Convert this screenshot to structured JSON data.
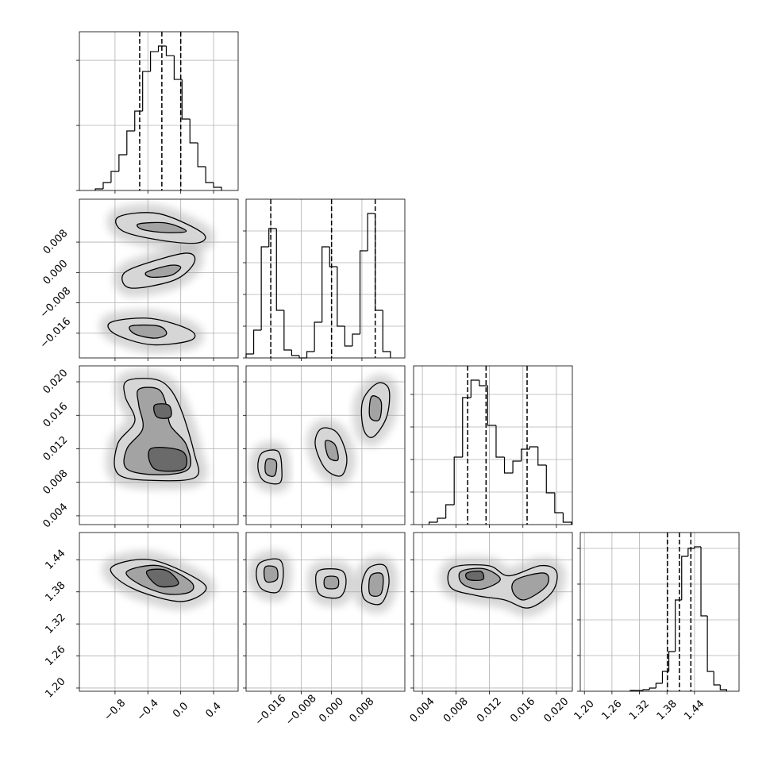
{
  "chart_data": {
    "type": "corner",
    "params": [
      {
        "xlim": [
          -1.234,
          0.699
        ],
        "ticks": [
          {
            "value": -0.8,
            "label": "−0.8"
          },
          {
            "value": -0.4,
            "label": "−0.4"
          },
          {
            "value": 0,
            "label": "0.0"
          },
          0.4
        ]
      },
      {
        "xlim": [
          -0.0225,
          0.0193
        ],
        "ylim": [
          -0.0225,
          0.0193
        ],
        "ticks": [
          {
            "value": -0.016,
            "label": "−0.016"
          },
          {
            "value": -0.008,
            "label": "−0.008"
          },
          {
            "value": 0,
            "label": "0.000"
          },
          0.008
        ]
      },
      {
        "xlim": [
          0.00295,
          0.0219
        ],
        "ylim": [
          0.00295,
          0.0219
        ],
        "ticks": [
          0.004,
          0.008,
          0.012,
          0.016,
          {
            "value": 0.02,
            "label": "0.020"
          }
        ]
      },
      {
        "xlim": [
          1.191,
          1.537
        ],
        "ylim": [
          1.194,
          1.491
        ],
        "ticks": [
          {
            "value": 1.2,
            "label": "1.20"
          },
          1.26,
          1.32,
          1.38,
          1.44
        ]
      }
    ],
    "histograms": [
      {
        "bins": [
          -1.04,
          -0.944,
          -0.848,
          -0.752,
          -0.656,
          -0.56,
          -0.464,
          -0.368,
          -0.272,
          -0.176,
          -0.08,
          0.016,
          0.112,
          0.208,
          0.304,
          0.4,
          0.496
        ],
        "counts": [
          24,
          122,
          293,
          549,
          915,
          1220,
          1829,
          2134,
          2220,
          2073,
          1707,
          1098,
          732,
          366,
          122,
          49
        ],
        "ylim": [
          0,
          2440
        ],
        "yticks": [
          0,
          1000,
          2000
        ],
        "quantiles": [
          -0.5,
          -0.23,
          0
        ]
      },
      {
        "bins": [
          -0.0225,
          -0.0205,
          -0.0185,
          -0.0165,
          -0.0145,
          -0.0125,
          -0.0105,
          -0.0085,
          -0.0065,
          -0.0045,
          -0.0025,
          -0.0005,
          0.0015,
          0.0035,
          0.0055,
          0.0075,
          0.0095,
          0.0115,
          0.0135,
          0.0155
        ],
        "counts": [
          125,
          875,
          3500,
          4075,
          1500,
          250,
          75,
          0,
          200,
          1125,
          3500,
          2875,
          1000,
          375,
          750,
          3375,
          4550,
          1500,
          200
        ],
        "ylim": [
          0,
          5000
        ],
        "yticks": [
          0,
          1000,
          2000,
          3000,
          4000
        ],
        "quantiles": [
          -0.016,
          0,
          0.0115
        ]
      },
      {
        "bins": [
          0.0048,
          0.0058,
          0.0068,
          0.0078,
          0.0088,
          0.0098,
          0.0108,
          0.0118,
          0.0128,
          0.0138,
          0.0148,
          0.0158,
          0.0168,
          0.0178,
          0.0188,
          0.0198,
          0.0208,
          0.0218
        ],
        "counts": [
          73,
          195,
          610,
          2073,
          3902,
          4439,
          4268,
          3049,
          2073,
          1585,
          1951,
          2317,
          2390,
          1829,
          976,
          366,
          73
        ],
        "ylim": [
          0,
          4878
        ],
        "yticks": [
          0,
          1000,
          2000,
          3000,
          4000
        ],
        "quantiles": [
          0.0094,
          0.0116,
          0.0165
        ]
      },
      {
        "bins": [
          1.3,
          1.314,
          1.328,
          1.342,
          1.356,
          1.37,
          1.384,
          1.398,
          1.412,
          1.426,
          1.44,
          1.454,
          1.468,
          1.482,
          1.496,
          1.51
        ],
        "counts": [
          22,
          22,
          44,
          89,
          222,
          556,
          1111,
          2556,
          3778,
          4000,
          4044,
          2111,
          556,
          178,
          44
        ],
        "ylim": [
          0,
          4444
        ],
        "yticks": [
          0,
          1000,
          2000,
          3000,
          4000
        ],
        "quantiles": [
          1.381,
          1.407,
          1.432
        ]
      }
    ],
    "panels": [
      [
        {
          "levels": [
            [
              {
                "x": [
                  -0.752,
                  -0.27,
                  0.26,
                  0.212,
                  -0.222,
                  -0.704
                ],
                "y": [
                  0.0147,
                  0.0155,
                  0.0105,
                  0.0078,
                  0.0084,
                  0.0109
                ]
              },
              {
                "x": [
                  -0.704,
                  -0.463,
                  0.067,
                  0.164,
                  -0.077,
                  -0.607
                ],
                "y": [
                  -0.0006,
                  0.0021,
                  0.0051,
                  0.0026,
                  -0.002,
                  -0.0041
                ]
              },
              {
                "x": [
                  -0.848,
                  -0.366,
                  0.115,
                  0.115,
                  -0.366,
                  -0.8
                ],
                "y": [
                  -0.0131,
                  -0.0121,
                  -0.0152,
                  -0.0179,
                  -0.019,
                  -0.0162
                ]
              }
            ],
            [
              {
                "x": [
                  -0.511,
                  -0.174,
                  0.067,
                  -0.174,
                  -0.463
                ],
                "y": [
                  0.0128,
                  0.013,
                  0.0109,
                  0.0105,
                  0.0113
                ]
              },
              {
                "x": [
                  -0.415,
                  -0.126,
                  0,
                  -0.126,
                  -0.366
                ],
                "y": [
                  0.0001,
                  0.0019,
                  0.0013,
                  -0.0008,
                  -0.0012
                ]
              },
              {
                "x": [
                  -0.607,
                  -0.27,
                  -0.174,
                  -0.318,
                  -0.559
                ],
                "y": [
                  -0.0141,
                  -0.0141,
                  -0.0162,
                  -0.0173,
                  -0.0162
                ]
              }
            ]
          ]
        }
      ],
      [
        {
          "levels": [
            [
              {
                "x": [
                  -0.656,
                  -0.318,
                  -0.126,
                  0.019,
                  0.164,
                  0.193,
                  -0.222,
                  -0.752,
                  -0.771,
                  -0.559,
                  -0.675
                ],
                "y": [
                  0.0201,
                  0.0203,
                  0.0191,
                  0.0163,
                  0.0115,
                  0.0087,
                  0.0082,
                  0.0089,
                  0.0125,
                  0.0153,
                  0.0182
                ]
              }
            ],
            [
              {
                "x": [
                  -0.511,
                  -0.27,
                  -0.174,
                  -0.126,
                  0.067,
                  0.096,
                  -0.27,
                  -0.656,
                  -0.656,
                  -0.463,
                  -0.511
                ],
                "y": [
                  0.0191,
                  0.0191,
                  0.0172,
                  0.0148,
                  0.0125,
                  0.0096,
                  0.0089,
                  0.0096,
                  0.012,
                  0.0144,
                  0.0172
                ]
              }
            ],
            [
              {
                "x": [
                  -0.318,
                  -0.145,
                  -0.126,
                  -0.289
                ],
                "y": [
                  0.0172,
                  0.0172,
                  0.0158,
                  0.0158
                ]
              },
              {
                "x": [
                  -0.366,
                  0.019,
                  0.038,
                  -0.318
                ],
                "y": [
                  0.012,
                  0.0117,
                  0.0096,
                  0.0096
                ]
              }
            ]
          ]
        },
        {
          "levels": [
            [
              {
                "x": [
                  -0.0183,
                  -0.0141,
                  -0.0131,
                  -0.0137,
                  -0.0179,
                  -0.0194
                ],
                "y": [
                  0.0115,
                  0.0117,
                  0.0096,
                  0.0079,
                  0.0082,
                  0.0098
                ]
              },
              {
                "x": [
                  -0.0027,
                  0.0015,
                  0.004,
                  0.0026,
                  -0.0016,
                  -0.0043
                ],
                "y": [
                  0.0144,
                  0.0139,
                  0.011,
                  0.0088,
                  0.0096,
                  0.0125
                ]
              },
              {
                "x": [
                  0.012,
                  0.0151,
                  0.0145,
                  0.0109,
                  0.0084,
                  0.0082
                ],
                "y": [
                  0.0198,
                  0.0191,
                  0.0158,
                  0.0134,
                  0.0144,
                  0.0177
                ]
              }
            ],
            [
              {
                "x": [
                  -0.0171,
                  -0.0146,
                  -0.015,
                  -0.0173
                ],
                "y": [
                  0.0107,
                  0.0105,
                  0.0088,
                  0.0091
                ]
              },
              {
                "x": [
                  -0.0016,
                  0.0009,
                  0.0017,
                  -0.0008
                ],
                "y": [
                  0.0129,
                  0.0125,
                  0.0107,
                  0.011
                ]
              },
              {
                "x": [
                  0.0105,
                  0.013,
                  0.0126,
                  0.0101
                ],
                "y": [
                  0.0182,
                  0.0177,
                  0.0155,
                  0.0158
                ]
              }
            ]
          ]
        }
      ],
      [
        {
          "levels": [
            [
              {
                "x": [
                  -0.848,
                  -0.366,
                  0.212,
                  0.289,
                  -0.029,
                  -0.607
                ],
                "y": [
                  1.425,
                  1.44,
                  1.403,
                  1.38,
                  1.362,
                  1.388
                ]
              }
            ],
            [
              {
                "x": [
                  -0.656,
                  -0.27,
                  0.115,
                  0.115,
                  -0.174,
                  -0.511
                ],
                "y": [
                  1.418,
                  1.429,
                  1.4,
                  1.38,
                  1.376,
                  1.395
                ]
              }
            ],
            [
              {
                "x": [
                  -0.415,
                  -0.174,
                  -0.029,
                  -0.27
                ],
                "y": [
                  1.418,
                  1.42,
                  1.395,
                  1.391
                ]
              }
            ]
          ]
        },
        {
          "levels": [
            [
              {
                "x": [
                  -0.0187,
                  -0.0137,
                  -0.0127,
                  -0.0141,
                  -0.0183,
                  -0.0198
                ],
                "y": [
                  1.435,
                  1.44,
                  1.41,
                  1.38,
                  1.385,
                  1.41
                ]
              },
              {
                "x": [
                  -0.0033,
                  0.0026,
                  0.0038,
                  0.0021,
                  -0.0027,
                  -0.0041
                ],
                "y": [
                  1.42,
                  1.42,
                  1.395,
                  1.37,
                  1.373,
                  1.395
                ]
              },
              {
                "x": [
                  0.0099,
                  0.014,
                  0.0151,
                  0.013,
                  0.0088,
                  0.008
                ],
                "y": [
                  1.425,
                  1.429,
                  1.395,
                  1.358,
                  1.365,
                  1.395
                ]
              }
            ],
            [
              {
                "x": [
                  -0.0175,
                  -0.0146,
                  -0.0144,
                  -0.0173
                ],
                "y": [
                  1.426,
                  1.425,
                  1.403,
                  1.4
                ]
              },
              {
                "x": [
                  -0.0016,
                  0.0015,
                  0.0015,
                  -0.0016
                ],
                "y": [
                  1.407,
                  1.407,
                  1.388,
                  1.388
                ]
              },
              {
                "x": [
                  0.0103,
                  0.0134,
                  0.013,
                  0.0101
                ],
                "y": [
                  1.41,
                  1.412,
                  1.376,
                  1.376
                ]
              }
            ]
          ]
        },
        {
          "levels": [
            [
              {
                "x": [
                  0.0076,
                  0.0119,
                  0.0143,
                  0.0181,
                  0.02,
                  0.0195,
                  0.0167,
                  0.0138,
                  0.0105,
                  0.0074
                ],
                "y": [
                  1.425,
                  1.429,
                  1.41,
                  1.429,
                  1.418,
                  1.38,
                  1.35,
                  1.365,
                  1.373,
                  1.388
                ]
              }
            ],
            [
              {
                "x": [
                  0.0086,
                  0.0114,
                  0.0133,
                  0.011,
                  0.0088
                ],
                "y": [
                  1.418,
                  1.423,
                  1.403,
                  1.385,
                  1.395
                ]
              },
              {
                "x": [
                  0.0152,
                  0.0186,
                  0.0188,
                  0.0162,
                  0.0148
                ],
                "y": [
                  1.403,
                  1.415,
                  1.391,
                  1.365,
                  1.38
                ]
              }
            ],
            [
              {
                "x": [
                  0.0093,
                  0.011,
                  0.0112,
                  0.0095
                ],
                "y": [
                  1.415,
                  1.418,
                  1.403,
                  1.403
                ]
              }
            ]
          ]
        }
      ]
    ],
    "grid": true
  }
}
